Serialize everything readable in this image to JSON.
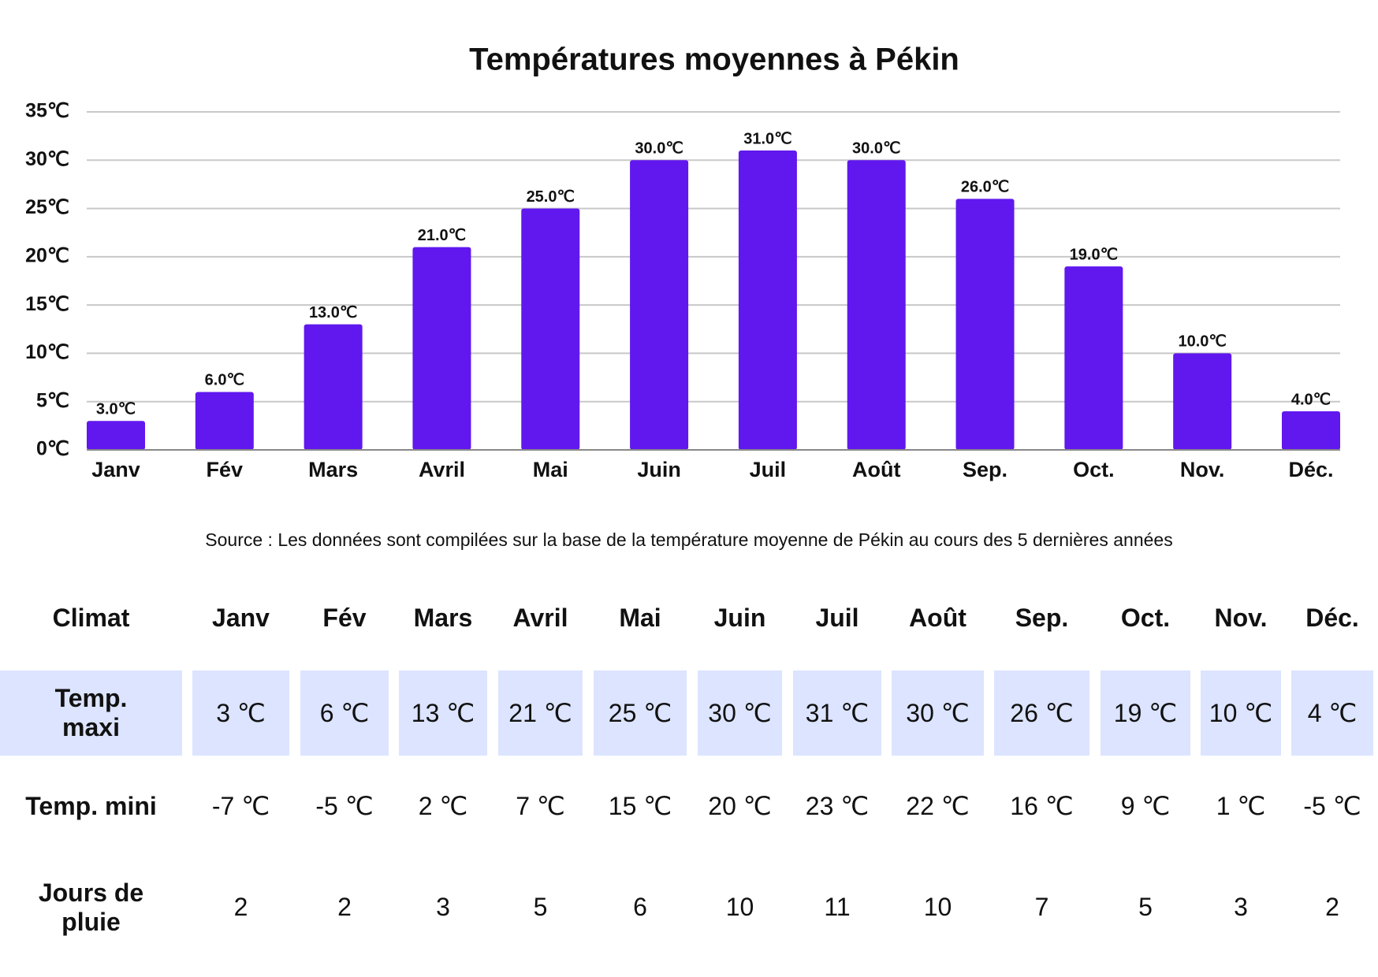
{
  "chart_data": {
    "type": "bar",
    "title": "Températures moyennes à Pékin",
    "categories": [
      "Janv",
      "Fév",
      "Mars",
      "Avril",
      "Mai",
      "Juin",
      "Juil",
      "Août",
      "Sep.",
      "Oct.",
      "Nov.",
      "Déc."
    ],
    "values": [
      3,
      6,
      13,
      21,
      25,
      30,
      31,
      30,
      26,
      19,
      10,
      4
    ],
    "value_labels": [
      "3.0℃",
      "6.0℃",
      "13.0℃",
      "21.0℃",
      "25.0℃",
      "30.0℃",
      "31.0℃",
      "30.0℃",
      "26.0℃",
      "19.0℃",
      "10.0℃",
      "4.0℃"
    ],
    "color": "#6018ee",
    "ylim": [
      0,
      35
    ],
    "yticks": [
      {
        "value": 0,
        "label": "0℃"
      },
      {
        "value": 5,
        "label": "5℃"
      },
      {
        "value": 10,
        "label": "10℃"
      },
      {
        "value": 15,
        "label": "15℃"
      },
      {
        "value": 20,
        "label": "20℃"
      },
      {
        "value": 25,
        "label": "25℃"
      },
      {
        "value": 30,
        "label": "30℃"
      },
      {
        "value": 35,
        "label": "35℃"
      }
    ],
    "grid": true
  },
  "source": "Source : Les données sont compilées sur la base de la température moyenne de Pékin au cours des 5 dernières années",
  "table": {
    "header": [
      "Climat",
      "Janv",
      "Fév",
      "Mars",
      "Avril",
      "Mai",
      "Juin",
      "Juil",
      "Août",
      "Sep.",
      "Oct.",
      "Nov.",
      "Déc."
    ],
    "rows": [
      [
        "Temp. maxi",
        "3 ℃",
        "6 ℃",
        "13 ℃",
        "21 ℃",
        "25 ℃",
        "30 ℃",
        "31 ℃",
        "30 ℃",
        "26 ℃",
        "19 ℃",
        "10 ℃",
        "4 ℃"
      ],
      [
        "Temp. mini",
        "-7 ℃",
        "-5 ℃",
        "2 ℃",
        "7 ℃",
        "15 ℃",
        "20 ℃",
        "23 ℃",
        "22 ℃",
        "16 ℃",
        "9 ℃",
        "1 ℃",
        "-5 ℃"
      ],
      [
        "Jours de pluie",
        "2",
        "2",
        "3",
        "5",
        "6",
        "10",
        "11",
        "10",
        "7",
        "5",
        "3",
        "2"
      ]
    ]
  }
}
